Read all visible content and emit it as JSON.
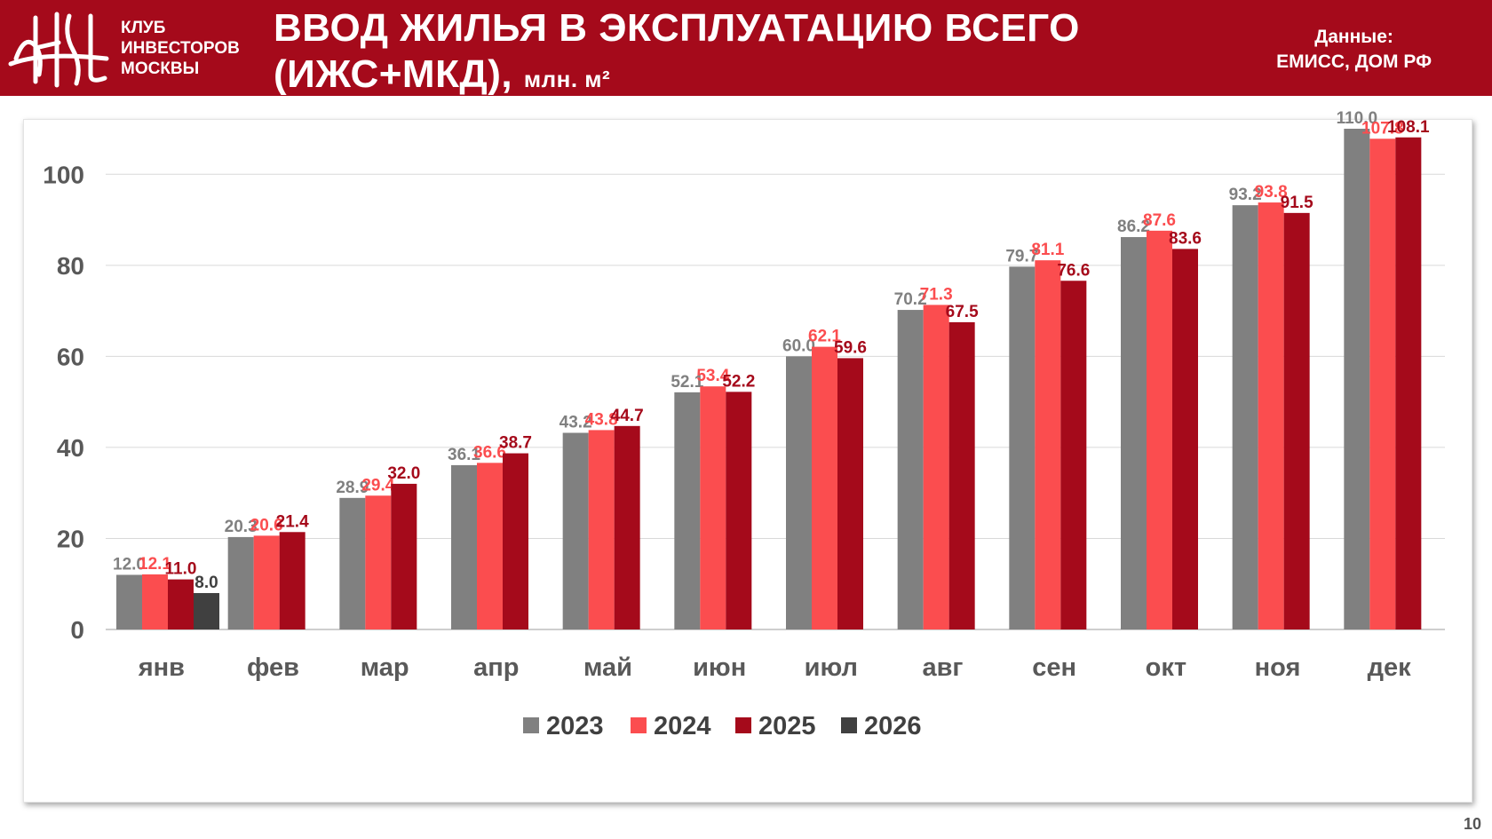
{
  "header": {
    "club_lines": [
      "КЛУБ",
      "ИНВЕСТОРОВ",
      "МОСКВЫ"
    ],
    "title_line1": "ВВОД ЖИЛЬЯ В ЭКСПЛУАТАЦИЮ ВСЕГО",
    "title_line2": "(ИЖС+МКД),",
    "title_unit": "млн. м²",
    "source_label": "Данные:",
    "source_value": "ЕМИСС, ДОМ РФ"
  },
  "page_number": "10",
  "colors": {
    "brand": "#a50a1b",
    "s2023": "#808080",
    "s2024": "#fb4d4f",
    "s2025": "#a50a1b",
    "s2026": "#404040"
  },
  "chart_data": {
    "type": "bar",
    "title": "Ввод жилья в эксплуатацию всего (ИЖС+МКД), млн. м²",
    "categories": [
      "янв",
      "фев",
      "мар",
      "апр",
      "май",
      "июн",
      "июл",
      "авг",
      "сен",
      "окт",
      "ноя",
      "дек"
    ],
    "series": [
      {
        "name": "2023",
        "values": [
          12.0,
          20.3,
          28.9,
          36.1,
          43.2,
          52.1,
          60.0,
          70.2,
          79.7,
          86.2,
          93.2,
          110.0
        ],
        "labels": [
          "12.0",
          "20.3",
          "28.9",
          "36.1",
          "43.2",
          "52.1",
          "60.0",
          "70.2",
          "79.7",
          "86.2",
          "93.2",
          "110.0"
        ]
      },
      {
        "name": "2024",
        "values": [
          12.1,
          20.6,
          29.4,
          36.6,
          43.8,
          53.4,
          62.1,
          71.3,
          81.1,
          87.6,
          93.8,
          107.8
        ],
        "labels": [
          "12.1",
          "20.6",
          "29.4",
          "36.6",
          "43.8",
          "53.4",
          "62.1",
          "71.3",
          "81.1",
          "87.6",
          "93.8",
          "107.8"
        ]
      },
      {
        "name": "2025",
        "values": [
          11.0,
          21.4,
          32.0,
          38.7,
          44.7,
          52.2,
          59.6,
          67.5,
          76.6,
          83.6,
          91.5,
          108.1
        ],
        "labels": [
          "11.0",
          "21.4",
          "32.0",
          "38.7",
          "44.7",
          "52.2",
          "59.6",
          "67.5",
          "76.6",
          "83.6",
          "91.5",
          "108.1"
        ]
      },
      {
        "name": "2026",
        "values": [
          8.0,
          null,
          null,
          null,
          null,
          null,
          null,
          null,
          null,
          null,
          null,
          null
        ],
        "labels": [
          "8.0",
          null,
          null,
          null,
          null,
          null,
          null,
          null,
          null,
          null,
          null,
          null
        ]
      }
    ],
    "ylim": [
      0,
      110
    ],
    "yticks": [
      "0",
      "20",
      "40",
      "60",
      "80",
      "100"
    ],
    "xlabel": "",
    "ylabel": "",
    "grid": true,
    "legend": "bottom-center"
  }
}
